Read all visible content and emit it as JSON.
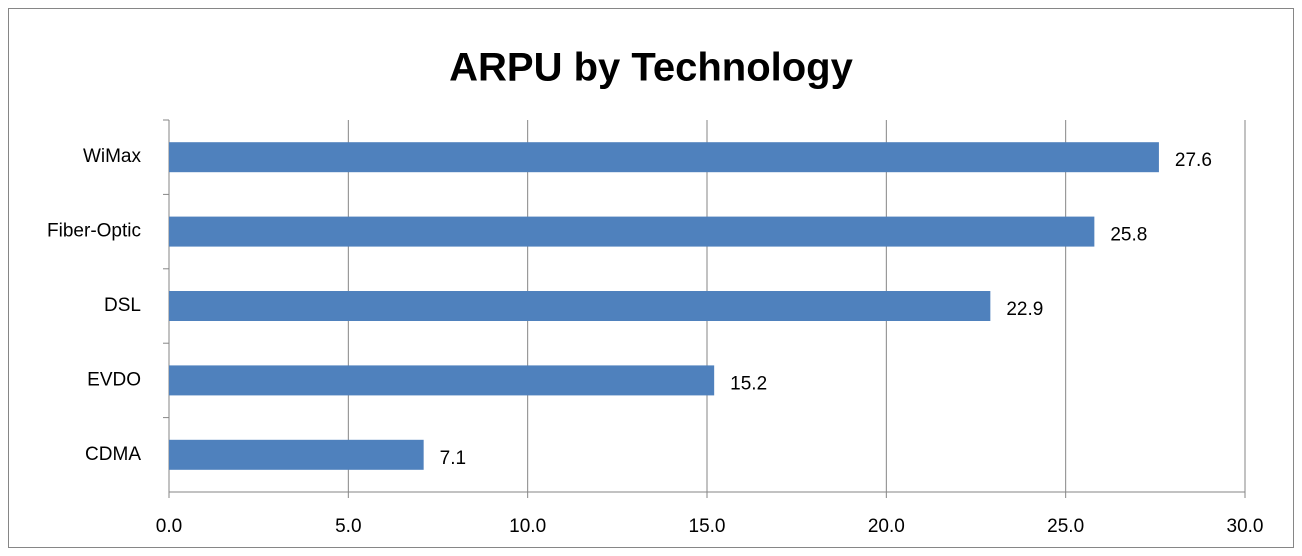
{
  "chart_data": {
    "type": "bar",
    "orientation": "horizontal",
    "title": "ARPU by Technology",
    "categories": [
      "WiMax",
      "Fiber-Optic",
      "DSL",
      "EVDO",
      "CDMA"
    ],
    "values": [
      27.6,
      25.8,
      22.9,
      15.2,
      7.1
    ],
    "color": "#4f81bd",
    "xlim": [
      0,
      30
    ],
    "xticks": [
      {
        "value": 0,
        "label": "0.0"
      },
      {
        "value": 5,
        "label": "5.0"
      },
      {
        "value": 10,
        "label": "10.0"
      },
      {
        "value": 15,
        "label": "15.0"
      },
      {
        "value": 20,
        "label": "20.0"
      },
      {
        "value": 25,
        "label": "25.0"
      },
      {
        "value": 30,
        "label": "30.0"
      }
    ],
    "grid": true
  }
}
